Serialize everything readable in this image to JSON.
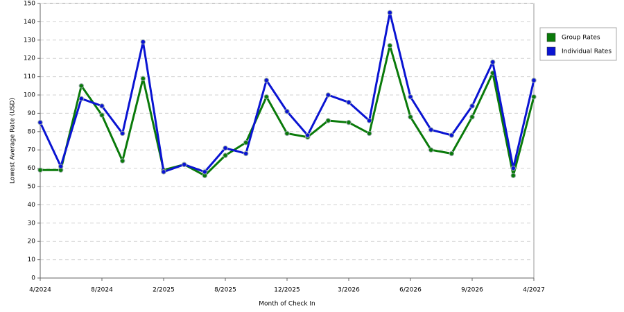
{
  "chart_data": {
    "type": "line",
    "x_label": "Month of Check In",
    "y_label": "Lowest Average Rate (USD)",
    "categories": [
      "4/2024",
      null,
      null,
      "8/2024",
      null,
      null,
      "2/2025",
      null,
      null,
      "8/2025",
      null,
      null,
      "12/2025",
      null,
      null,
      "3/2026",
      null,
      null,
      "6/2026",
      null,
      null,
      "9/2026",
      null,
      null,
      "4/2027"
    ],
    "series": [
      {
        "name": "Group Rates",
        "color": "#0a7a0a",
        "values": [
          59,
          59,
          105,
          89,
          64,
          109,
          59,
          62,
          56,
          67,
          74,
          99,
          79,
          77,
          86,
          85,
          79,
          127,
          88,
          70,
          68,
          88,
          112,
          56,
          99
        ]
      },
      {
        "name": "Individual Rates",
        "color": "#0a14d2",
        "values": [
          85,
          61,
          98,
          94,
          79,
          129,
          58,
          62,
          58,
          71,
          68,
          108,
          91,
          78,
          100,
          96,
          86,
          145,
          99,
          81,
          78,
          94,
          118,
          60,
          108
        ]
      }
    ],
    "ylim": [
      0,
      150
    ],
    "yticks": [
      0,
      10,
      20,
      30,
      40,
      50,
      60,
      70,
      80,
      90,
      100,
      110,
      120,
      130,
      140,
      150
    ],
    "grid": true,
    "legend": "right"
  }
}
